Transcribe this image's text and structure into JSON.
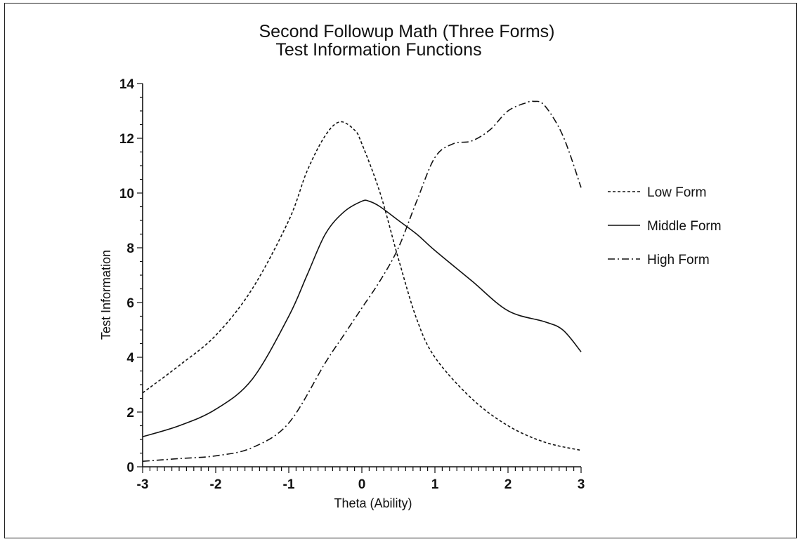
{
  "chart_data": {
    "type": "line",
    "title": "Second Followup Math (Three Forms)",
    "subtitle": "Test Information Functions",
    "xlabel": "Theta (Ability)",
    "ylabel": "Test Information",
    "xlim": [
      -3,
      3
    ],
    "ylim": [
      0,
      14
    ],
    "x_ticks": [
      "-3",
      "-2",
      "-1",
      "0",
      "1",
      "2",
      "3"
    ],
    "y_ticks": [
      "0",
      "2",
      "4",
      "6",
      "8",
      "10",
      "12",
      "14"
    ],
    "grid": false,
    "legend_position": "right",
    "series": [
      {
        "name": "Low Form",
        "dash": "dotted",
        "x": [
          -3,
          -2.5,
          -2,
          -1.5,
          -1,
          -0.75,
          -0.5,
          -0.3,
          -0.1,
          0,
          0.25,
          0.5,
          0.75,
          1,
          1.5,
          2,
          2.5,
          3
        ],
        "y": [
          2.7,
          3.7,
          4.8,
          6.5,
          9.0,
          10.8,
          12.1,
          12.6,
          12.3,
          11.8,
          10.0,
          7.6,
          5.4,
          4.0,
          2.5,
          1.5,
          0.9,
          0.6
        ]
      },
      {
        "name": "Middle Form",
        "dash": "solid",
        "x": [
          -3,
          -2.5,
          -2,
          -1.5,
          -1,
          -0.75,
          -0.5,
          -0.25,
          0,
          0.1,
          0.25,
          0.5,
          0.75,
          1,
          1.5,
          2,
          2.5,
          2.75,
          3
        ],
        "y": [
          1.1,
          1.5,
          2.1,
          3.2,
          5.5,
          7.0,
          8.5,
          9.3,
          9.7,
          9.7,
          9.5,
          9.0,
          8.5,
          7.9,
          6.8,
          5.7,
          5.3,
          5.0,
          4.2
        ]
      },
      {
        "name": "High Form",
        "dash": "dash-dot",
        "x": [
          -3,
          -2.5,
          -2,
          -1.5,
          -1,
          -0.5,
          -0.25,
          0,
          0.25,
          0.5,
          0.75,
          1,
          1.25,
          1.5,
          1.75,
          2,
          2.25,
          2.35,
          2.5,
          2.75,
          3
        ],
        "y": [
          0.2,
          0.3,
          0.4,
          0.7,
          1.6,
          3.8,
          4.8,
          5.8,
          6.8,
          8.0,
          9.7,
          11.3,
          11.8,
          11.9,
          12.3,
          13.0,
          13.3,
          13.35,
          13.2,
          12.1,
          10.2
        ]
      }
    ]
  }
}
